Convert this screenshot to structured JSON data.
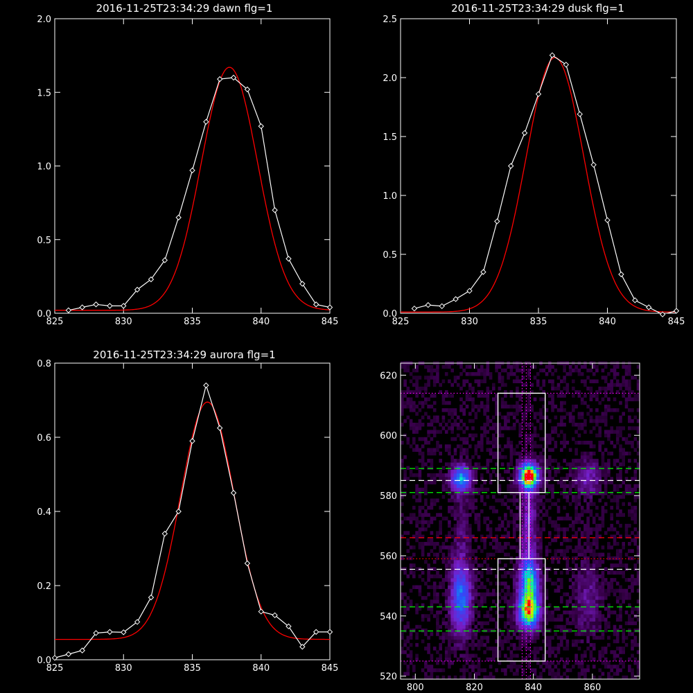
{
  "chart_data": [
    {
      "type": "line",
      "title": "2016-11-25T23:34:29 dawn flg=1",
      "xlim": [
        825,
        845
      ],
      "ylim": [
        0,
        2.0
      ],
      "xticks": [
        825,
        830,
        835,
        840,
        845
      ],
      "yticks": [
        "0.0",
        "0.5",
        "1.0",
        "1.5",
        "2.0"
      ],
      "series": [
        {
          "style": "data-diamonds",
          "color": "#ffffff",
          "x": [
            826,
            827,
            828,
            829,
            830,
            831,
            832,
            833,
            834,
            835,
            836,
            837,
            838,
            839,
            840,
            841,
            842,
            843,
            844,
            845
          ],
          "y": [
            0.02,
            0.04,
            0.06,
            0.05,
            0.05,
            0.16,
            0.23,
            0.36,
            0.65,
            0.97,
            1.3,
            1.59,
            1.6,
            1.52,
            1.27,
            0.7,
            0.37,
            0.2,
            0.06,
            0.04
          ]
        },
        {
          "style": "gaussian-fit",
          "color": "#ff0000",
          "center": 837.7,
          "amplitude": 1.65,
          "sigma": 2.05,
          "baseline": 0.02
        }
      ]
    },
    {
      "type": "line",
      "title": "2016-11-25T23:34:29 dusk flg=1",
      "xlim": [
        825,
        845
      ],
      "ylim": [
        0,
        2.5
      ],
      "xticks": [
        825,
        830,
        835,
        840,
        845
      ],
      "yticks": [
        "0.0",
        "0.5",
        "1.0",
        "1.5",
        "2.0",
        "2.5"
      ],
      "series": [
        {
          "style": "data-diamonds",
          "color": "#ffffff",
          "x": [
            826,
            827,
            828,
            829,
            830,
            831,
            832,
            833,
            834,
            835,
            836,
            837,
            838,
            839,
            840,
            841,
            842,
            843,
            844,
            845
          ],
          "y": [
            0.04,
            0.07,
            0.06,
            0.12,
            0.19,
            0.35,
            0.78,
            1.25,
            1.53,
            1.86,
            2.19,
            2.11,
            1.69,
            1.26,
            0.79,
            0.33,
            0.11,
            0.05,
            -0.01,
            0.02
          ]
        },
        {
          "style": "gaussian-fit",
          "color": "#ff0000",
          "center": 836.2,
          "amplitude": 2.16,
          "sigma": 2.1,
          "baseline": 0.01
        }
      ]
    },
    {
      "type": "line",
      "title": "2016-11-25T23:34:29 aurora flg=1",
      "xlim": [
        825,
        845
      ],
      "ylim": [
        0,
        0.8
      ],
      "xticks": [
        825,
        830,
        835,
        840,
        845
      ],
      "yticks": [
        "0.0",
        "0.2",
        "0.4",
        "0.6",
        "0.8"
      ],
      "series": [
        {
          "style": "data-diamonds",
          "color": "#ffffff",
          "x": [
            825,
            826,
            827,
            828,
            829,
            830,
            831,
            832,
            833,
            834,
            835,
            836,
            837,
            838,
            839,
            840,
            841,
            842,
            843,
            844,
            845
          ],
          "y": [
            0.005,
            0.015,
            0.025,
            0.072,
            0.075,
            0.074,
            0.102,
            0.168,
            0.34,
            0.4,
            0.59,
            0.74,
            0.625,
            0.45,
            0.26,
            0.13,
            0.12,
            0.09,
            0.035,
            0.075,
            0.075
          ]
        },
        {
          "style": "gaussian-fit",
          "color": "#ff0000",
          "center": 836.1,
          "amplitude": 0.64,
          "sigma": 1.95,
          "baseline": 0.055
        }
      ]
    },
    {
      "type": "heatmap",
      "title": "",
      "xlim": [
        795,
        876
      ],
      "ylim": [
        519,
        624
      ],
      "xticks": [
        800,
        820,
        840,
        860
      ],
      "yticks": [
        520,
        540,
        560,
        580,
        600,
        620
      ],
      "blobs": [
        {
          "x": 838,
          "y": 586,
          "sx": 2.3,
          "sy": 2.8,
          "a": 1.0
        },
        {
          "x": 838,
          "y": 541,
          "sx": 2.5,
          "sy": 4.0,
          "a": 0.85
        },
        {
          "x": 838,
          "y": 551,
          "sx": 2.3,
          "sy": 5.0,
          "a": 0.6
        },
        {
          "x": 815,
          "y": 585,
          "sx": 2.4,
          "sy": 3.0,
          "a": 0.55
        },
        {
          "x": 815,
          "y": 545,
          "sx": 2.5,
          "sy": 8.0,
          "a": 0.45
        },
        {
          "x": 858,
          "y": 585,
          "sx": 3.0,
          "sy": 4.0,
          "a": 0.22
        },
        {
          "x": 858,
          "y": 545,
          "sx": 3.0,
          "sy": 8.0,
          "a": 0.16
        },
        {
          "x": 838,
          "y": 570,
          "sx": 1.8,
          "sy": 12.0,
          "a": 0.25
        },
        {
          "x": 815,
          "y": 565,
          "sx": 2.0,
          "sy": 14.0,
          "a": 0.1
        }
      ],
      "overlay_lines": [
        {
          "kind": "horizontal",
          "y": 589,
          "color": "#00ff00",
          "dash": "dashed"
        },
        {
          "kind": "horizontal",
          "y": 585,
          "color": "#ffffff",
          "dash": "dashed"
        },
        {
          "kind": "horizontal",
          "y": 581,
          "color": "#00ff00",
          "dash": "dashed"
        },
        {
          "kind": "horizontal",
          "y": 566,
          "color": "#ff0000",
          "dash": "dashed"
        },
        {
          "kind": "horizontal",
          "y": 559,
          "color": "#ff0000",
          "dash": "dotted"
        },
        {
          "kind": "horizontal",
          "y": 555.5,
          "color": "#ffffff",
          "dash": "dashed"
        },
        {
          "kind": "horizontal",
          "y": 543,
          "color": "#00ff00",
          "dash": "dashed"
        },
        {
          "kind": "horizontal",
          "y": 535,
          "color": "#00ff00",
          "dash": "dashed"
        },
        {
          "kind": "horizontal",
          "y": 614,
          "color": "#ff00ff",
          "dash": "dotted"
        },
        {
          "kind": "horizontal",
          "y": 525,
          "color": "#ff00ff",
          "dash": "dotted"
        },
        {
          "kind": "vertical",
          "x": 836.2,
          "color": "#ff00ff",
          "dash": "dotted"
        },
        {
          "kind": "vertical",
          "x": 837.6,
          "color": "#ff00ff",
          "dash": "dotted"
        },
        {
          "kind": "vertical",
          "x": 839.0,
          "color": "#ff00ff",
          "dash": "dotted"
        }
      ],
      "boxes": [
        {
          "x0": 828,
          "x1": 844,
          "y0": 581,
          "y1": 614,
          "color": "#ffffff"
        },
        {
          "x0": 828,
          "x1": 844,
          "y0": 525,
          "y1": 559,
          "color": "#ffffff"
        },
        {
          "x0": 835.5,
          "x1": 838.5,
          "y0": 559,
          "y1": 581,
          "color": "#ffffff"
        }
      ]
    }
  ]
}
